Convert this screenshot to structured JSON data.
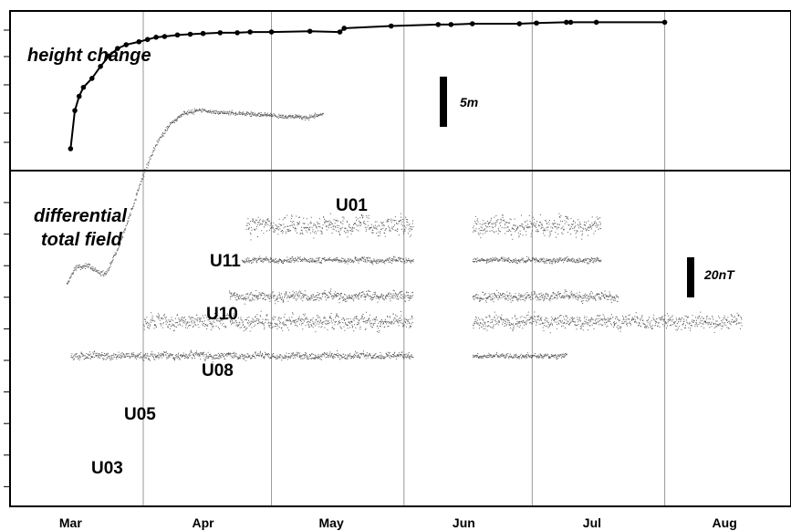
{
  "chart_data": [
    {
      "type": "line",
      "title": "height change",
      "scale_bar": {
        "label": "5m",
        "value": 5,
        "unit": "m"
      },
      "markers": true,
      "x_dates": [
        "03-15",
        "03-16",
        "03-17",
        "03-18",
        "03-20",
        "03-22",
        "03-24",
        "03-26",
        "03-28",
        "03-31",
        "04-02",
        "04-04",
        "04-06",
        "04-09",
        "04-12",
        "04-15",
        "04-19",
        "04-23",
        "04-26",
        "05-01",
        "05-10",
        "05-17",
        "05-18",
        "05-29",
        "06-09",
        "06-12",
        "06-17",
        "06-28",
        "07-02",
        "07-09",
        "07-10",
        "07-16",
        "08-01"
      ],
      "y": [
        0,
        5.1,
        7.0,
        8.2,
        9.4,
        11.0,
        12.4,
        13.4,
        13.9,
        14.3,
        14.6,
        14.9,
        15.0,
        15.2,
        15.3,
        15.4,
        15.5,
        15.5,
        15.6,
        15.6,
        15.7,
        15.6,
        16.1,
        16.4,
        16.6,
        16.6,
        16.7,
        16.7,
        16.8,
        16.9,
        16.9,
        16.9,
        16.9
      ],
      "ylim": [
        -1,
        19
      ]
    },
    {
      "type": "line",
      "title": "differential total field",
      "scale_bar": {
        "label": "20nT",
        "value": 20,
        "unit": "nT"
      },
      "xlabels": [
        "Mar",
        "Apr",
        "May",
        "Jun",
        "Jul",
        "Aug"
      ],
      "series": [
        {
          "name": "U01",
          "segments": [
            {
              "start": "03-14",
              "end": "05-13",
              "points": [
                [
                  "03-14",
                  18
                ],
                [
                  "03-16",
                  27
                ],
                [
                  "03-19",
                  28
                ],
                [
                  "03-21",
                  25
                ],
                [
                  "03-23",
                  23
                ],
                [
                  "03-26",
                  38
                ],
                [
                  "03-29",
                  58
                ],
                [
                  "04-01",
                  79
                ],
                [
                  "04-04",
                  96
                ],
                [
                  "04-07",
                  106
                ],
                [
                  "04-10",
                  112
                ],
                [
                  "04-14",
                  114
                ],
                [
                  "04-18",
                  113
                ],
                [
                  "04-25",
                  112
                ],
                [
                  "05-02",
                  111
                ],
                [
                  "05-09",
                  110
                ],
                [
                  "05-13",
                  112
                ]
              ],
              "noise": 1.0
            }
          ]
        },
        {
          "name": "U11",
          "segments": [
            {
              "start": "04-25",
              "end": "06-03",
              "base": 50,
              "noise": 4.0
            },
            {
              "start": "06-17",
              "end": "07-17",
              "base": 50,
              "noise": 4.0
            }
          ]
        },
        {
          "name": "U10",
          "segments": [
            {
              "start": "04-24",
              "end": "06-03",
              "base": 31,
              "noise": 1.2
            },
            {
              "start": "06-17",
              "end": "07-17",
              "base": 31,
              "noise": 1.2
            }
          ]
        },
        {
          "name": "U08",
          "segments": [
            {
              "start": "04-21",
              "end": "06-03",
              "base": 11,
              "noise": 2.0
            },
            {
              "start": "06-17",
              "end": "07-21",
              "base": 11,
              "noise": 2.0
            }
          ]
        },
        {
          "name": "U05",
          "segments": [
            {
              "start": "04-01",
              "end": "06-03",
              "base": -3,
              "noise": 3.0
            },
            {
              "start": "06-17",
              "end": "08-19",
              "base": -3,
              "noise": 3.0
            }
          ]
        },
        {
          "name": "U03",
          "segments": [
            {
              "start": "03-15",
              "end": "06-03",
              "base": -22,
              "noise": 1.5
            },
            {
              "start": "06-17",
              "end": "07-09",
              "base": -22,
              "noise": 1.0
            }
          ]
        }
      ],
      "ylim": [
        -40,
        125
      ]
    }
  ]
}
